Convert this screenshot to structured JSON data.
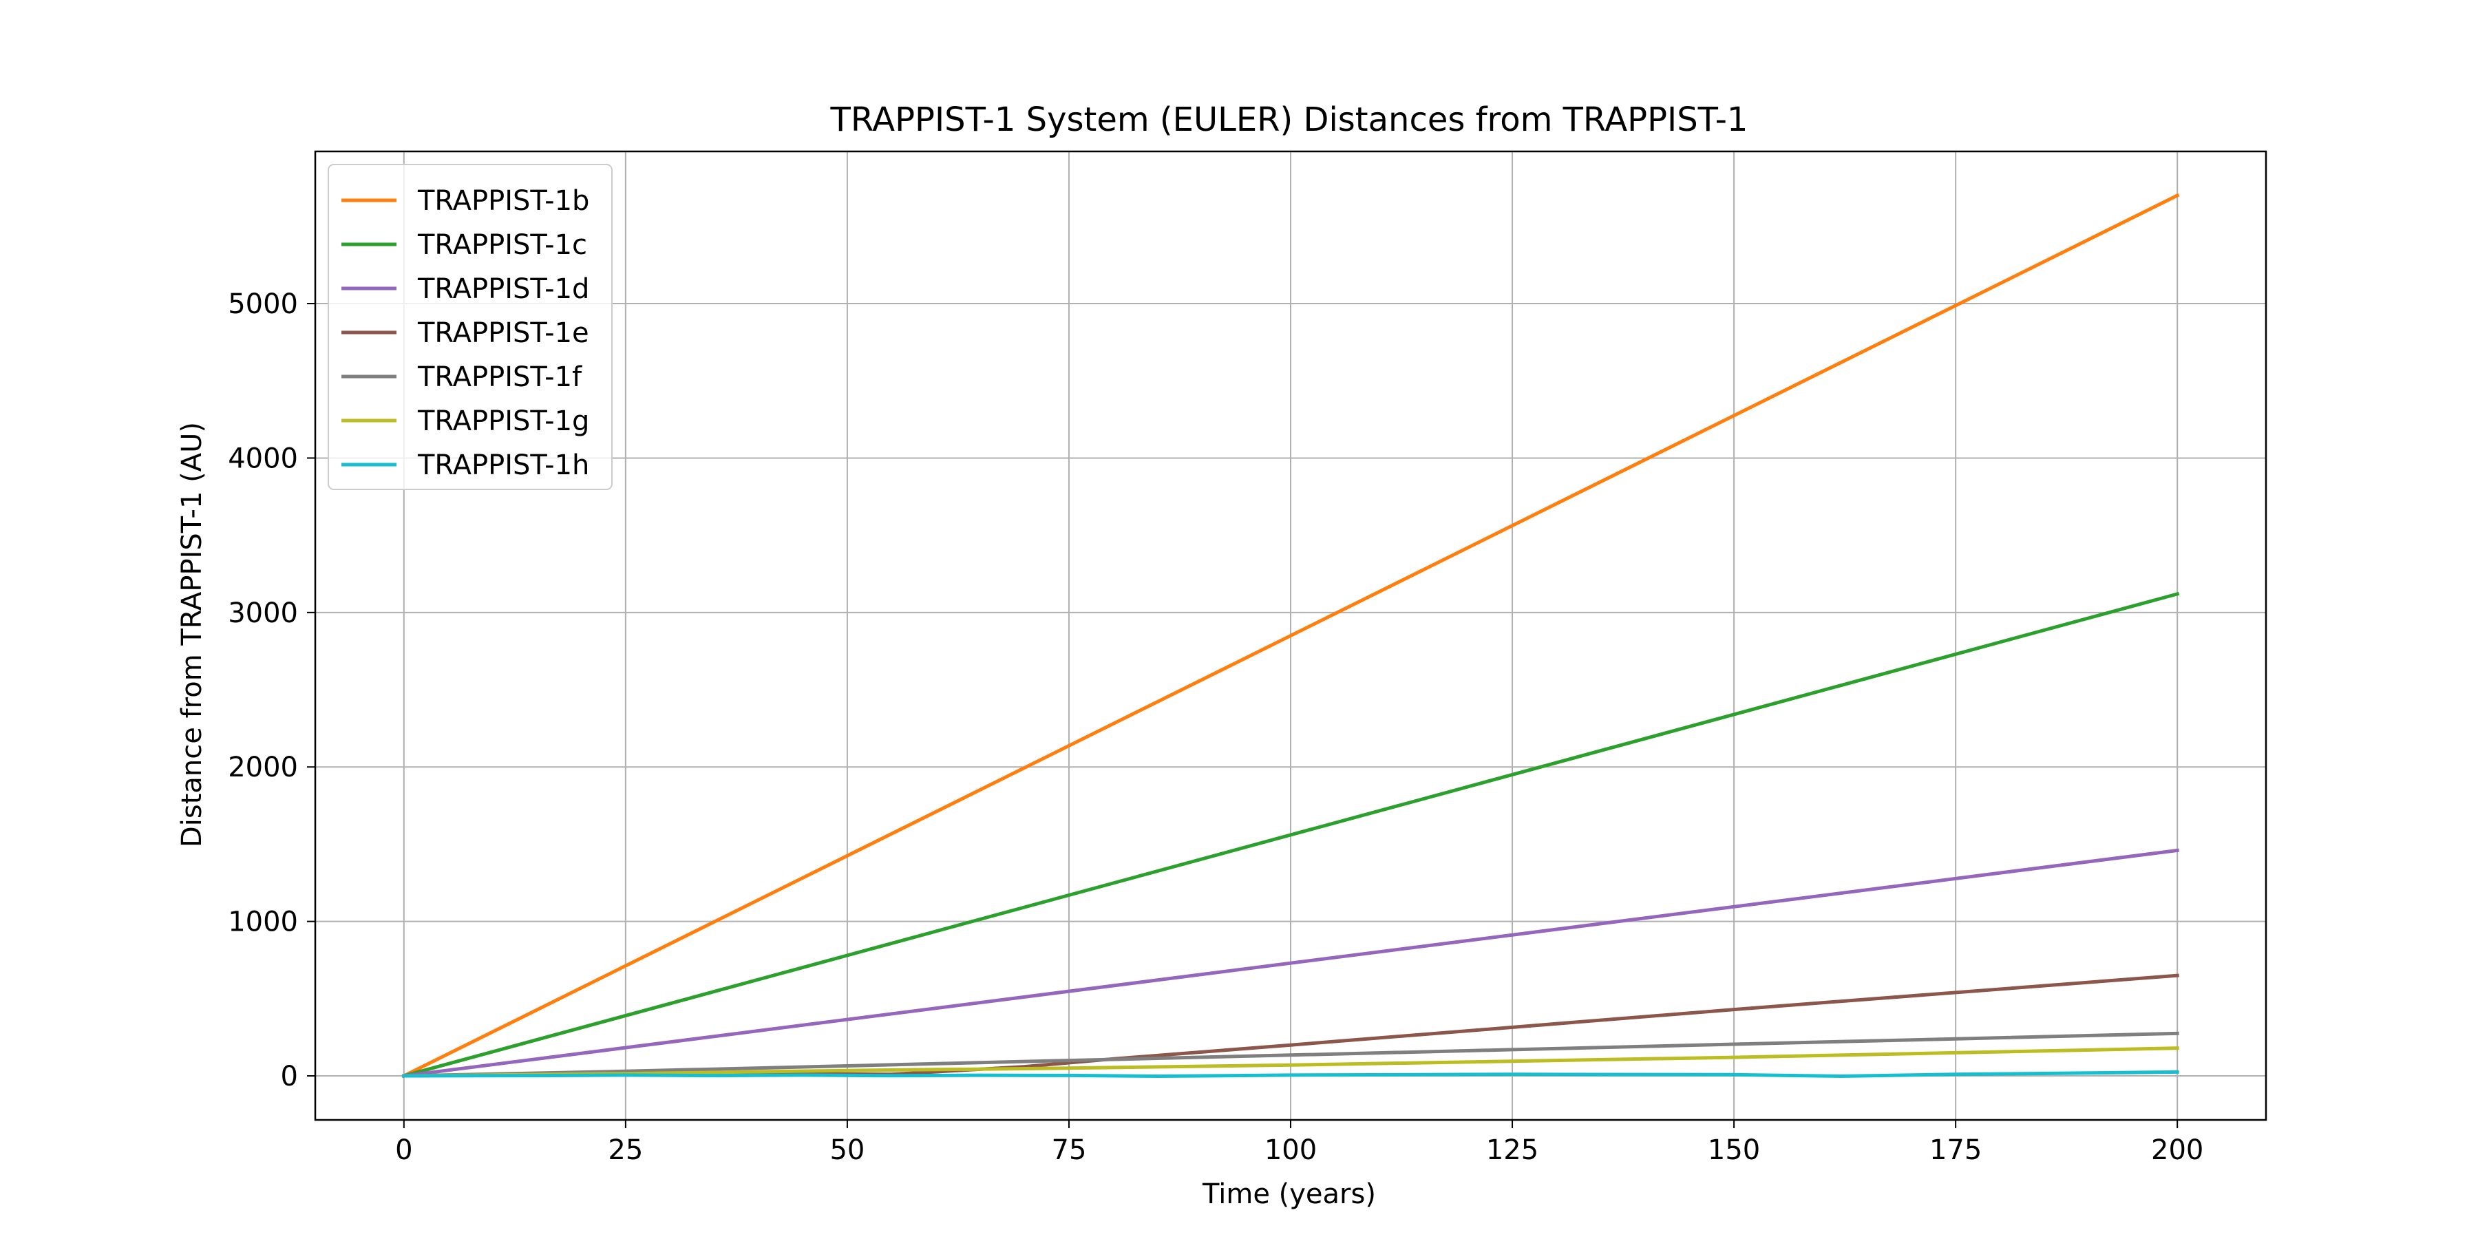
{
  "chart_data": {
    "type": "line",
    "title": "TRAPPIST-1 System (EULER) Distances from TRAPPIST-1",
    "xlabel": "Time (years)",
    "ylabel": "Distance from TRAPPIST-1 (AU)",
    "xlim": [
      -10,
      210
    ],
    "ylim": [
      -285,
      5985
    ],
    "xticks": [
      0,
      25,
      50,
      75,
      100,
      125,
      150,
      175,
      200
    ],
    "yticks": [
      0,
      1000,
      2000,
      3000,
      4000,
      5000
    ],
    "grid": true,
    "legend_position": "top-left",
    "series": [
      {
        "name": "TRAPPIST-1b",
        "color": "#ff7f0e",
        "x": [
          0,
          200
        ],
        "y": [
          0,
          5700
        ]
      },
      {
        "name": "TRAPPIST-1c",
        "color": "#2ca02c",
        "x": [
          0,
          200
        ],
        "y": [
          0,
          3120
        ]
      },
      {
        "name": "TRAPPIST-1d",
        "color": "#9467bd",
        "x": [
          0,
          200
        ],
        "y": [
          0,
          1460
        ]
      },
      {
        "name": "TRAPPIST-1e",
        "color": "#8c564b",
        "x": [
          0,
          25,
          40,
          55,
          70,
          80,
          100,
          150,
          200
        ],
        "y": [
          0,
          10,
          15,
          10,
          60,
          110,
          200,
          430,
          650
        ]
      },
      {
        "name": "TRAPPIST-1f",
        "color": "#7f7f7f",
        "x": [
          0,
          25,
          50,
          75,
          100,
          125,
          150,
          175,
          200
        ],
        "y": [
          0,
          30,
          65,
          100,
          135,
          170,
          205,
          240,
          275
        ]
      },
      {
        "name": "TRAPPIST-1g",
        "color": "#bcbd22",
        "x": [
          0,
          25,
          50,
          75,
          100,
          125,
          150,
          175,
          200
        ],
        "y": [
          0,
          15,
          35,
          50,
          70,
          95,
          120,
          150,
          180
        ]
      },
      {
        "name": "TRAPPIST-1h",
        "color": "#17becf",
        "x": [
          0,
          15,
          25,
          35,
          45,
          55,
          65,
          75,
          85,
          100,
          125,
          150,
          162,
          175,
          200
        ],
        "y": [
          0,
          2,
          5,
          2,
          5,
          1,
          4,
          3,
          -2,
          5,
          10,
          8,
          -2,
          10,
          25
        ]
      }
    ]
  }
}
